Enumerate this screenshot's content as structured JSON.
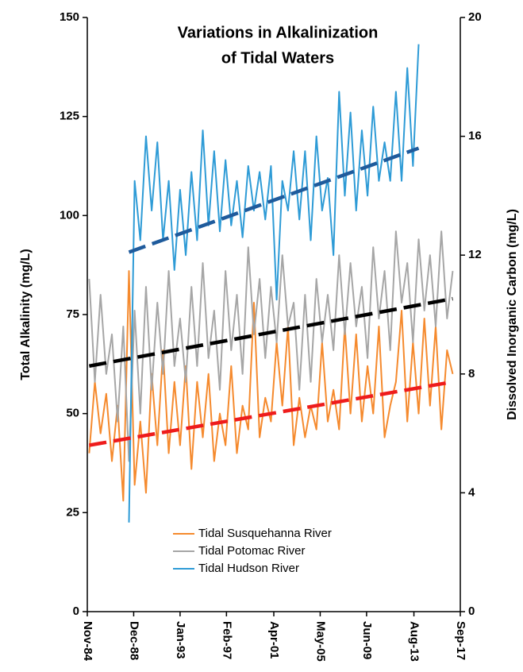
{
  "chart_data": {
    "type": "line",
    "title": [
      "Variations in Alkalinization",
      "of Tidal Waters"
    ],
    "y_label": "Total Alkalinity (mg/L)",
    "y2_label": "Dissolved Inorganic Carbon (mg/L)",
    "xlim": [
      "1984-11",
      "2017-09"
    ],
    "xticks": [
      {
        "value": "1984-11",
        "label": "Nov-84"
      },
      {
        "value": "1988-12",
        "label": "Dec-88"
      },
      {
        "value": "1993-01",
        "label": "Jan-93"
      },
      {
        "value": "1997-02",
        "label": "Feb-97"
      },
      {
        "value": "2001-04",
        "label": "Apr-01"
      },
      {
        "value": "2005-05",
        "label": "May-05"
      },
      {
        "value": "2009-06",
        "label": "Jun-09"
      },
      {
        "value": "2013-08",
        "label": "Aug-13"
      },
      {
        "value": "2017-09",
        "label": "Sep-17"
      }
    ],
    "ylim": [
      0,
      150
    ],
    "yticks": [
      0,
      25,
      50,
      75,
      100,
      125,
      150
    ],
    "y2lim": [
      0,
      20
    ],
    "y2ticks": [
      0,
      4,
      8,
      12,
      16,
      20
    ],
    "x": [
      "1985-01",
      "1985-07",
      "1986-01",
      "1986-07",
      "1987-01",
      "1987-07",
      "1988-01",
      "1988-07",
      "1989-01",
      "1989-07",
      "1990-01",
      "1990-07",
      "1991-01",
      "1991-07",
      "1992-01",
      "1992-07",
      "1993-01",
      "1993-07",
      "1994-01",
      "1994-07",
      "1995-01",
      "1995-07",
      "1996-01",
      "1996-07",
      "1997-01",
      "1997-07",
      "1998-01",
      "1998-07",
      "1999-01",
      "1999-07",
      "2000-01",
      "2000-07",
      "2001-01",
      "2001-07",
      "2002-01",
      "2002-07",
      "2003-01",
      "2003-07",
      "2004-01",
      "2004-07",
      "2005-01",
      "2005-07",
      "2006-01",
      "2006-07",
      "2007-01",
      "2007-07",
      "2008-01",
      "2008-07",
      "2009-01",
      "2009-07",
      "2010-01",
      "2010-07",
      "2011-01",
      "2011-07",
      "2012-01",
      "2012-07",
      "2013-01",
      "2013-07",
      "2014-01",
      "2014-07",
      "2015-01",
      "2015-07",
      "2016-01",
      "2016-07",
      "2017-01"
    ],
    "series": [
      {
        "name": "Tidal Susquehanna River",
        "color": "#f58a2e",
        "axis": "y",
        "values": [
          40,
          58,
          45,
          55,
          38,
          52,
          28,
          86,
          32,
          48,
          30,
          60,
          42,
          66,
          40,
          58,
          42,
          62,
          36,
          58,
          44,
          60,
          38,
          50,
          42,
          62,
          40,
          52,
          46,
          78,
          44,
          54,
          48,
          68,
          52,
          72,
          42,
          54,
          44,
          52,
          46,
          68,
          48,
          56,
          46,
          72,
          50,
          70,
          48,
          62,
          50,
          72,
          44,
          52,
          58,
          76,
          48,
          68,
          50,
          74,
          52,
          72,
          46,
          66,
          60
        ]
      },
      {
        "name": "Tidal Potomac River",
        "color": "#a6a6a6",
        "axis": "y",
        "values": [
          84,
          58,
          80,
          60,
          70,
          48,
          72,
          38,
          76,
          50,
          82,
          56,
          78,
          60,
          86,
          62,
          74,
          58,
          82,
          62,
          88,
          64,
          76,
          56,
          86,
          66,
          80,
          60,
          92,
          70,
          84,
          64,
          82,
          68,
          90,
          72,
          78,
          56,
          80,
          58,
          84,
          68,
          80,
          66,
          90,
          70,
          88,
          72,
          82,
          64,
          92,
          74,
          86,
          66,
          96,
          78,
          88,
          68,
          94,
          76,
          90,
          72,
          96,
          74,
          86
        ]
      },
      {
        "name": "Tidal Hudson River",
        "color": "#2e9bd6",
        "axis": "y2",
        "values": [
          null,
          null,
          null,
          null,
          null,
          null,
          null,
          3.0,
          14.5,
          12.5,
          16.0,
          13.5,
          15.8,
          12.5,
          14.5,
          11.5,
          14.2,
          12.0,
          14.8,
          12.5,
          16.2,
          13.0,
          15.5,
          12.8,
          15.2,
          13.0,
          14.5,
          12.6,
          15.0,
          13.5,
          14.8,
          13.2,
          15.0,
          10.5,
          14.5,
          13.5,
          15.5,
          13.2,
          15.5,
          12.5,
          16.0,
          13.5,
          14.6,
          12.0,
          17.5,
          14.0,
          16.8,
          13.5,
          16.2,
          14.0,
          17.0,
          14.5,
          15.8,
          14.5,
          17.5,
          14.5,
          18.3,
          15.0,
          19.1,
          null,
          null,
          null,
          null,
          null,
          null
        ]
      }
    ],
    "trends": [
      {
        "color": "#ee1c1c",
        "axis": "y",
        "x": [
          "1985-01",
          "2017-01"
        ],
        "values": [
          42,
          58
        ]
      },
      {
        "color": "#000000",
        "axis": "y",
        "x": [
          "1985-01",
          "2017-01"
        ],
        "values": [
          62,
          79
        ]
      },
      {
        "color": "#1f5b9c",
        "axis": "y2",
        "x": [
          "1988-07",
          "2014-01"
        ],
        "values": [
          12.1,
          15.6
        ]
      }
    ]
  }
}
